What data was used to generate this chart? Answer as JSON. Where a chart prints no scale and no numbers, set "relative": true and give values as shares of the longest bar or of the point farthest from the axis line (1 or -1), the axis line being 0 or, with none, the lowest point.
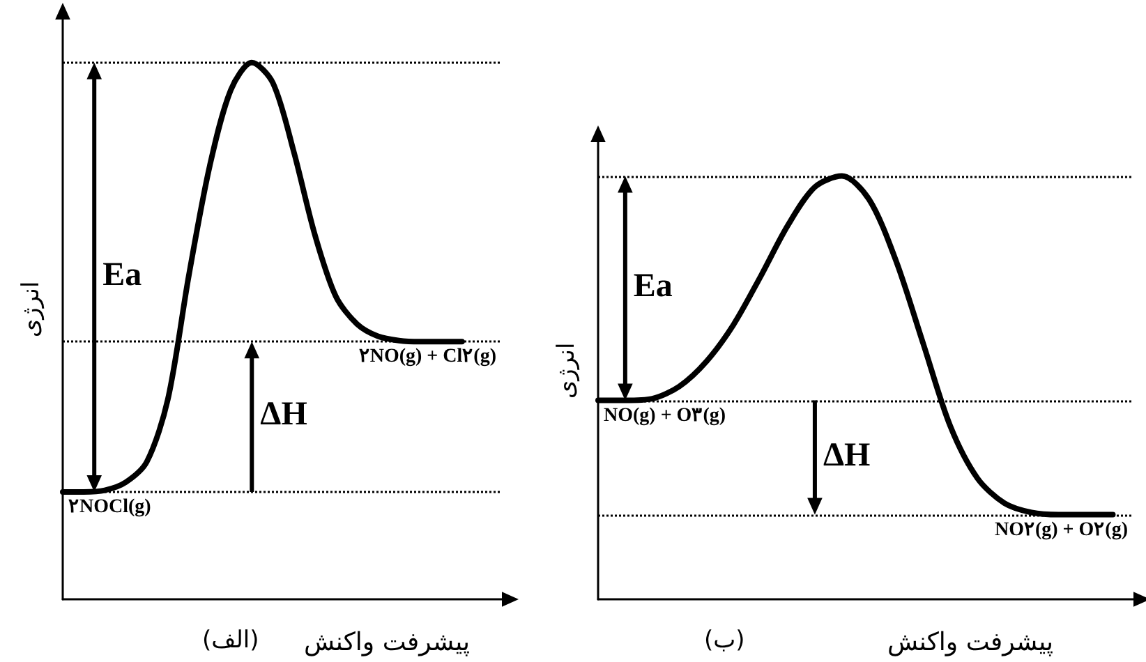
{
  "chart_data": [
    {
      "type": "line",
      "title": "(الف)",
      "xlabel": "پیشرفت واکنش",
      "ylabel": "انرژی",
      "relative": true,
      "marker": "none",
      "categories": [
        null,
        null,
        null,
        null,
        null,
        null,
        null,
        null,
        null,
        null,
        null,
        null,
        null,
        null,
        null,
        null,
        null,
        null,
        null,
        null
      ],
      "series": [
        {
          "color": "#000000",
          "values": [
            0.2,
            0.2,
            0.203,
            0.218,
            0.256,
            0.372,
            0.603,
            0.808,
            0.949,
            1,
            0.962,
            0.833,
            0.679,
            0.564,
            0.513,
            0.49,
            0.482,
            0.48,
            0.48,
            0.48
          ]
        }
      ],
      "ref_lines": [
        {
          "axis": "y",
          "value": 1,
          "line_style": "dotted",
          "color": "#000000"
        },
        {
          "axis": "y",
          "value": 0.2,
          "label": "۲NOCl(g)",
          "line_style": "dotted",
          "color": "#000000"
        },
        {
          "axis": "y",
          "value": 0.48,
          "label": "۲NO(g) + Cl۲(g)",
          "line_style": "dotted",
          "color": "#000000"
        }
      ],
      "annotations": [
        "Ea",
        "ΔH"
      ]
    },
    {
      "type": "line",
      "title": "(ب)",
      "xlabel": "پیشرفت واکنش",
      "ylabel": "انرژی",
      "relative": true,
      "marker": "none",
      "categories": [
        null,
        null,
        null,
        null,
        null,
        null,
        null,
        null,
        null,
        null,
        null,
        null,
        null,
        null,
        null,
        null,
        null,
        null,
        null,
        null
      ],
      "series": [
        {
          "color": "#000000",
          "values": [
            0.47,
            0.47,
            0.474,
            0.503,
            0.562,
            0.649,
            0.763,
            0.883,
            0.974,
            1,
            0.945,
            0.799,
            0.604,
            0.409,
            0.286,
            0.227,
            0.205,
            0.2,
            0.2,
            0.2
          ]
        }
      ],
      "ref_lines": [
        {
          "axis": "y",
          "value": 1,
          "line_style": "dotted",
          "color": "#000000"
        },
        {
          "axis": "y",
          "value": 0.47,
          "label": "NO(g) + O۳(g)",
          "line_style": "dotted",
          "color": "#000000"
        },
        {
          "axis": "y",
          "value": 0.2,
          "label": "NO۲(g) + O۲(g)",
          "line_style": "dotted",
          "color": "#000000"
        }
      ],
      "annotations": [
        "Ea",
        "ΔH"
      ]
    }
  ]
}
